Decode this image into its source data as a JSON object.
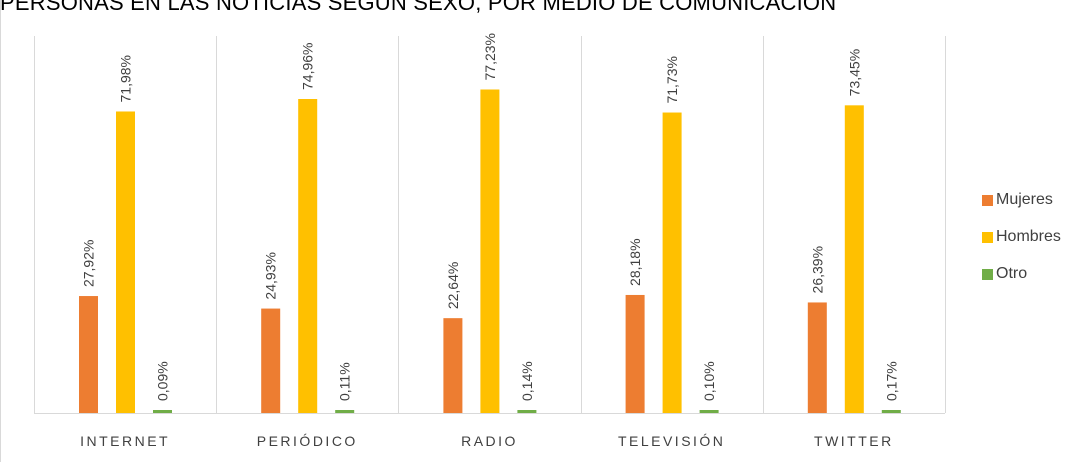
{
  "chart_data": {
    "type": "bar",
    "title": "PERSONAS EN LAS NOTICIAS SEGÚN SEXO, POR MEDIO DE COMUNICACIÓN",
    "categories": [
      "INTERNET",
      "PERIÓDICO",
      "RADIO",
      "TELEVISIÓN",
      "TWITTER"
    ],
    "series": [
      {
        "name": "Mujeres",
        "color": "#ed7d31",
        "values": [
          27.92,
          24.93,
          22.64,
          28.18,
          26.39
        ],
        "labels": [
          "27,92%",
          "24,93%",
          "22,64%",
          "28,18%",
          "26,39%"
        ]
      },
      {
        "name": "Hombres",
        "color": "#ffc000",
        "values": [
          71.98,
          74.96,
          77.23,
          71.73,
          73.45
        ],
        "labels": [
          "71,98%",
          "74,96%",
          "77,23%",
          "71,73%",
          "73,45%"
        ]
      },
      {
        "name": "Otro",
        "color": "#70ad47",
        "values": [
          0.09,
          0.11,
          0.14,
          0.1,
          0.17
        ],
        "labels": [
          "0,09%",
          "0,11%",
          "0,14%",
          "0,10%",
          "0,17%"
        ]
      }
    ],
    "ylim": [
      0,
      90
    ],
    "grid": "vertical category separators",
    "legend_position": "right"
  }
}
